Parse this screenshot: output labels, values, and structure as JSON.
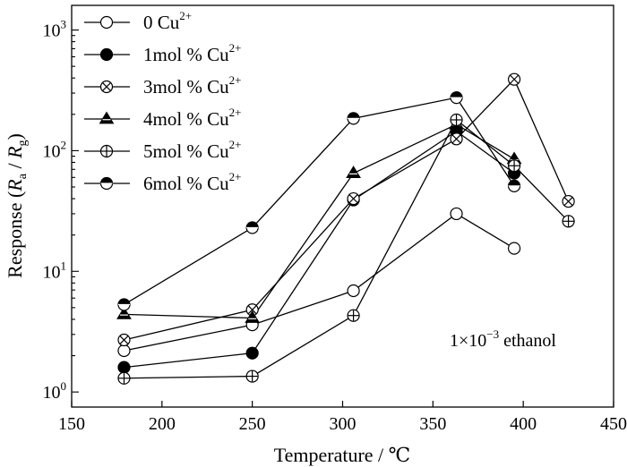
{
  "chart_data": {
    "type": "line",
    "xlabel": "Temperature / ℃",
    "ylabel": {
      "prefix": "Response (",
      "ra": "R",
      "ra_sub": "a",
      "sep": " / ",
      "rg": "R",
      "rg_sub": "g",
      "suffix": ")"
    },
    "x_scale": "linear",
    "y_scale": "log",
    "xlim": [
      150,
      450
    ],
    "ylim": [
      0.75,
      1600
    ],
    "x_ticks": [
      150,
      200,
      250,
      300,
      350,
      400,
      450
    ],
    "x_tick_labels": [
      "150",
      "200",
      "250",
      "300",
      "350",
      "400",
      "450"
    ],
    "y_ticks": [
      1,
      10,
      100,
      1000
    ],
    "y_tick_labels": [
      {
        "base": "10",
        "exp": "0"
      },
      {
        "base": "10",
        "exp": "1"
      },
      {
        "base": "10",
        "exp": "2"
      },
      {
        "base": "10",
        "exp": "3"
      }
    ],
    "grid": false,
    "legend_position": "top-left",
    "annotation": {
      "prefix": "1×10",
      "exp": "−3",
      "suffix": " ethanol"
    },
    "series": [
      {
        "name": "0 Cu",
        "sup": "2+",
        "marker": "open",
        "x": [
          179,
          250,
          306,
          363,
          395
        ],
        "y": [
          2.2,
          3.6,
          6.9,
          30,
          15.5
        ]
      },
      {
        "name": "1mol % Cu",
        "sup": "2+",
        "marker": "filled",
        "x": [
          179,
          250,
          306,
          363,
          395
        ],
        "y": [
          1.6,
          2.1,
          39,
          145,
          65
        ]
      },
      {
        "name": "3mol % Cu",
        "sup": "2+",
        "marker": "crossed",
        "x": [
          179,
          250,
          306,
          363,
          395,
          425
        ],
        "y": [
          2.7,
          4.8,
          40,
          125,
          390,
          38
        ]
      },
      {
        "name": "4mol % Cu",
        "sup": "2+",
        "marker": "triangle",
        "x": [
          179,
          250,
          306,
          363,
          395
        ],
        "y": [
          4.4,
          4.1,
          65,
          165,
          85
        ]
      },
      {
        "name": "5mol % Cu",
        "sup": "2+",
        "marker": "plus",
        "x": [
          179,
          250,
          306,
          363,
          395,
          425
        ],
        "y": [
          1.3,
          1.35,
          4.3,
          180,
          75,
          26
        ]
      },
      {
        "name": "6mol % Cu",
        "sup": "2+",
        "marker": "half",
        "x": [
          179,
          250,
          306,
          363,
          395
        ],
        "y": [
          5.3,
          23,
          185,
          275,
          51
        ]
      }
    ]
  }
}
